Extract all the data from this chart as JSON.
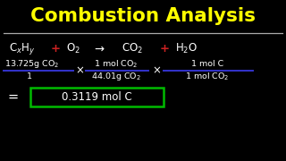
{
  "bg_color": "#000000",
  "title": "Combustion Analysis",
  "title_color": "#ffff00",
  "title_fontsize": 15.5,
  "separator_color": "#aaaaaa",
  "text_color": "#ffffff",
  "plus_color": "#cc2222",
  "line_color": "#3333cc",
  "result_box_color": "#00bb00",
  "result_text": "0.3119 mol C",
  "eq_fontsize": 8.5,
  "calc_fontsize": 6.8,
  "result_fontsize": 8.5
}
